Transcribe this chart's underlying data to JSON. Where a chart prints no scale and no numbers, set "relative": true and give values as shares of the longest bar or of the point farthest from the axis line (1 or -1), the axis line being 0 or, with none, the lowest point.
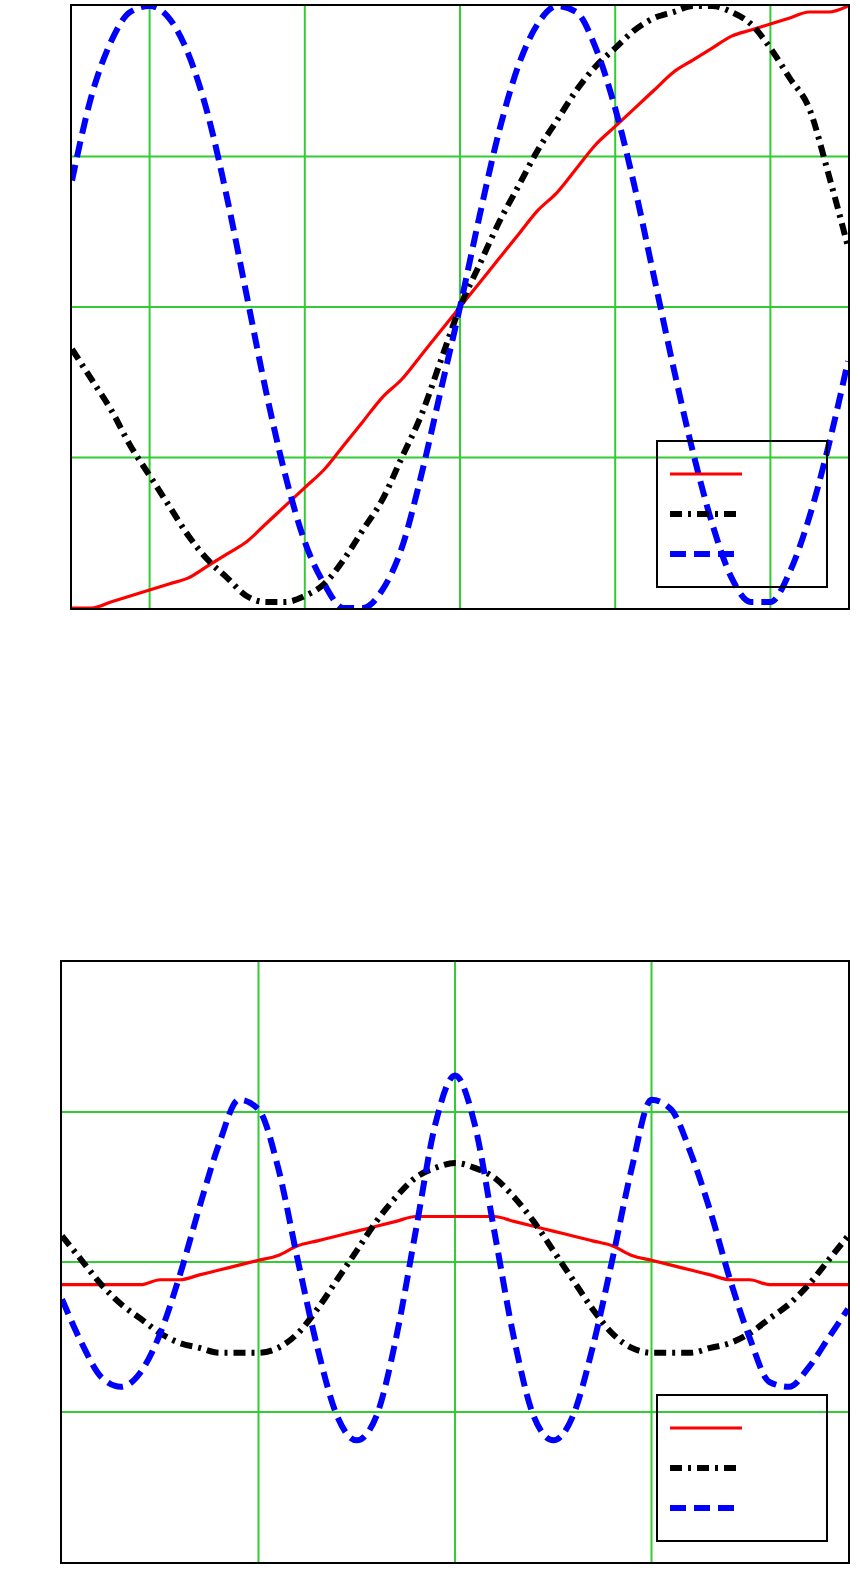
{
  "chart_data": [
    {
      "type": "line",
      "relative": true,
      "grid": true,
      "categories": [
        null,
        null,
        null,
        null,
        null,
        null,
        null,
        null,
        null,
        null,
        null,
        null,
        null,
        null,
        null,
        null,
        null,
        null,
        null,
        null,
        null,
        null,
        null,
        null,
        null,
        null,
        null,
        null,
        null,
        null,
        null,
        null,
        null,
        null,
        null,
        null,
        null,
        null,
        null,
        null,
        null
      ],
      "series": [
        {
          "color": "#ff0000",
          "line_style": "solid",
          "values": [
            0,
            0,
            0.01,
            0.02,
            0.03,
            0.04,
            0.05,
            0.07,
            0.09,
            0.11,
            0.14,
            0.17,
            0.2,
            0.23,
            0.27,
            0.31,
            0.35,
            0.38,
            0.42,
            0.46,
            0.5,
            0.54,
            0.58,
            0.62,
            0.66,
            0.69,
            0.73,
            0.77,
            0.8,
            0.83,
            0.86,
            0.89,
            0.91,
            0.93,
            0.95,
            0.96,
            0.97,
            0.98,
            0.99,
            0.99,
            1
          ]
        },
        {
          "color": "#000000",
          "line_style": "dotted",
          "values": [
            0.43,
            0.38,
            0.33,
            0.27,
            0.22,
            0.17,
            0.12,
            0.08,
            0.05,
            0.02,
            0.01,
            0.01,
            0.02,
            0.04,
            0.08,
            0.13,
            0.18,
            0.25,
            0.32,
            0.41,
            0.5,
            0.57,
            0.64,
            0.7,
            0.76,
            0.81,
            0.86,
            0.9,
            0.93,
            0.96,
            0.98,
            0.99,
            1,
            1,
            0.99,
            0.97,
            0.93,
            0.88,
            0.83,
            0.72,
            0.6
          ]
        },
        {
          "color": "#0000ff",
          "line_style": "dashed",
          "values": [
            0.71,
            0.85,
            0.94,
            0.99,
            1,
            0.98,
            0.92,
            0.82,
            0.68,
            0.52,
            0.36,
            0.22,
            0.11,
            0.04,
            0,
            0,
            0.03,
            0.1,
            0.22,
            0.36,
            0.5,
            0.65,
            0.79,
            0.9,
            0.97,
            1,
            0.99,
            0.93,
            0.83,
            0.7,
            0.55,
            0.4,
            0.26,
            0.14,
            0.05,
            0.01,
            0.01,
            0.06,
            0.15,
            0.27,
            0.41
          ]
        }
      ]
    },
    {
      "type": "line",
      "relative": true,
      "grid": true,
      "categories": [
        null,
        null,
        null,
        null,
        null,
        null,
        null,
        null,
        null,
        null,
        null,
        null,
        null,
        null,
        null,
        null,
        null,
        null,
        null,
        null,
        null,
        null,
        null,
        null,
        null,
        null,
        null,
        null,
        null,
        null,
        null,
        null,
        null,
        null,
        null,
        null,
        null,
        null,
        null,
        null,
        null
      ],
      "series": [
        {
          "color": "#ff0000",
          "line_style": "solid",
          "values": [
            0.57,
            0.57,
            0.57,
            0.57,
            0.57,
            0.58,
            0.58,
            0.59,
            0.6,
            0.61,
            0.62,
            0.63,
            0.65,
            0.66,
            0.67,
            0.68,
            0.69,
            0.7,
            0.71,
            0.71,
            0.71,
            0.71,
            0.71,
            0.7,
            0.69,
            0.68,
            0.67,
            0.66,
            0.65,
            0.63,
            0.62,
            0.61,
            0.6,
            0.59,
            0.58,
            0.58,
            0.57,
            0.57,
            0.57,
            0.57,
            0.57
          ]
        },
        {
          "color": "#000000",
          "line_style": "dotted",
          "values": [
            0.67,
            0.62,
            0.57,
            0.53,
            0.5,
            0.47,
            0.45,
            0.44,
            0.43,
            0.43,
            0.43,
            0.44,
            0.47,
            0.52,
            0.58,
            0.64,
            0.7,
            0.75,
            0.79,
            0.81,
            0.82,
            0.81,
            0.79,
            0.75,
            0.7,
            0.64,
            0.58,
            0.52,
            0.47,
            0.44,
            0.43,
            0.43,
            0.43,
            0.44,
            0.45,
            0.47,
            0.5,
            0.53,
            0.57,
            0.62,
            0.67
          ]
        },
        {
          "color": "#0000ff",
          "line_style": "dashed",
          "values": [
            0.54,
            0.45,
            0.38,
            0.36,
            0.39,
            0.47,
            0.59,
            0.73,
            0.86,
            0.95,
            0.93,
            0.81,
            0.62,
            0.44,
            0.3,
            0.25,
            0.3,
            0.46,
            0.68,
            0.9,
            1,
            0.9,
            0.68,
            0.46,
            0.3,
            0.25,
            0.3,
            0.44,
            0.62,
            0.81,
            0.95,
            0.93,
            0.84,
            0.72,
            0.58,
            0.46,
            0.37,
            0.36,
            0.4,
            0.46,
            0.52
          ]
        }
      ]
    }
  ]
}
